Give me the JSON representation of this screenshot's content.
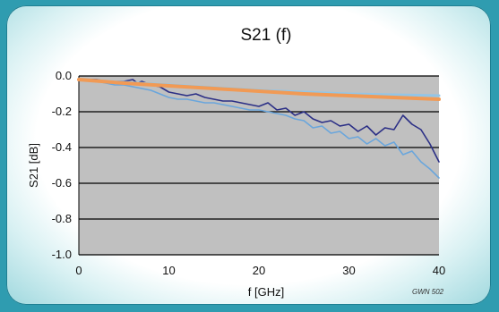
{
  "chart_data": {
    "type": "line",
    "title": "S21 (f)",
    "xlabel": "f [GHz]",
    "ylabel": "S21 [dB]",
    "xlim": [
      0,
      40
    ],
    "ylim": [
      -1.0,
      0.0
    ],
    "xticks": [
      0,
      10,
      20,
      30,
      40
    ],
    "yticks": [
      "0.0",
      "-0.2",
      "-0.4",
      "-0.6",
      "-0.8",
      "-1.0"
    ],
    "grid": "horizontal",
    "annotation": "GWN 502",
    "colors": {
      "plot_bg": "#c0c0c0",
      "series_dark": "#2b2f86",
      "series_light": "#6aa6dc",
      "series_orange": "#f19a55",
      "series_blue_ref": "#93c5e6"
    },
    "series": [
      {
        "color": "#2b2f86",
        "x": [
          0,
          1,
          2,
          3,
          4,
          5,
          6,
          6.5,
          7,
          8,
          9,
          10,
          11,
          12,
          13,
          14,
          15,
          16,
          17,
          18,
          19,
          20,
          21,
          22,
          23,
          24,
          25,
          26,
          27,
          28,
          29,
          30,
          31,
          32,
          33,
          34,
          35,
          36,
          37,
          38,
          39,
          40
        ],
        "y": [
          -0.02,
          -0.02,
          -0.02,
          -0.03,
          -0.03,
          -0.03,
          -0.02,
          -0.04,
          -0.03,
          -0.05,
          -0.06,
          -0.09,
          -0.1,
          -0.11,
          -0.1,
          -0.12,
          -0.13,
          -0.14,
          -0.14,
          -0.15,
          -0.16,
          -0.17,
          -0.15,
          -0.19,
          -0.18,
          -0.22,
          -0.2,
          -0.24,
          -0.26,
          -0.25,
          -0.28,
          -0.27,
          -0.31,
          -0.28,
          -0.33,
          -0.29,
          -0.3,
          -0.22,
          -0.27,
          -0.3,
          -0.38,
          -0.48
        ]
      },
      {
        "color": "#6aa6dc",
        "x": [
          0,
          1,
          2,
          3,
          4,
          5,
          6,
          7,
          8,
          9,
          10,
          11,
          12,
          13,
          14,
          15,
          16,
          17,
          18,
          19,
          20,
          21,
          22,
          23,
          24,
          25,
          26,
          27,
          28,
          29,
          30,
          31,
          32,
          33,
          34,
          35,
          36,
          37,
          38,
          39,
          40
        ],
        "y": [
          -0.02,
          -0.02,
          -0.03,
          -0.04,
          -0.05,
          -0.05,
          -0.06,
          -0.07,
          -0.08,
          -0.1,
          -0.12,
          -0.13,
          -0.13,
          -0.14,
          -0.15,
          -0.15,
          -0.16,
          -0.17,
          -0.18,
          -0.19,
          -0.19,
          -0.2,
          -0.21,
          -0.22,
          -0.24,
          -0.25,
          -0.29,
          -0.28,
          -0.32,
          -0.31,
          -0.35,
          -0.34,
          -0.38,
          -0.35,
          -0.39,
          -0.37,
          -0.44,
          -0.42,
          -0.48,
          -0.52,
          -0.57
        ]
      },
      {
        "color": "#93c5e6",
        "x": [
          0,
          5,
          10,
          15,
          20,
          25,
          30,
          35,
          40
        ],
        "y": [
          -0.02,
          -0.035,
          -0.05,
          -0.065,
          -0.08,
          -0.09,
          -0.1,
          -0.105,
          -0.11
        ]
      },
      {
        "color": "#f19a55",
        "x": [
          0,
          5,
          10,
          15,
          20,
          25,
          30,
          35,
          40
        ],
        "y": [
          -0.02,
          -0.04,
          -0.055,
          -0.07,
          -0.085,
          -0.1,
          -0.11,
          -0.12,
          -0.13
        ]
      }
    ]
  }
}
